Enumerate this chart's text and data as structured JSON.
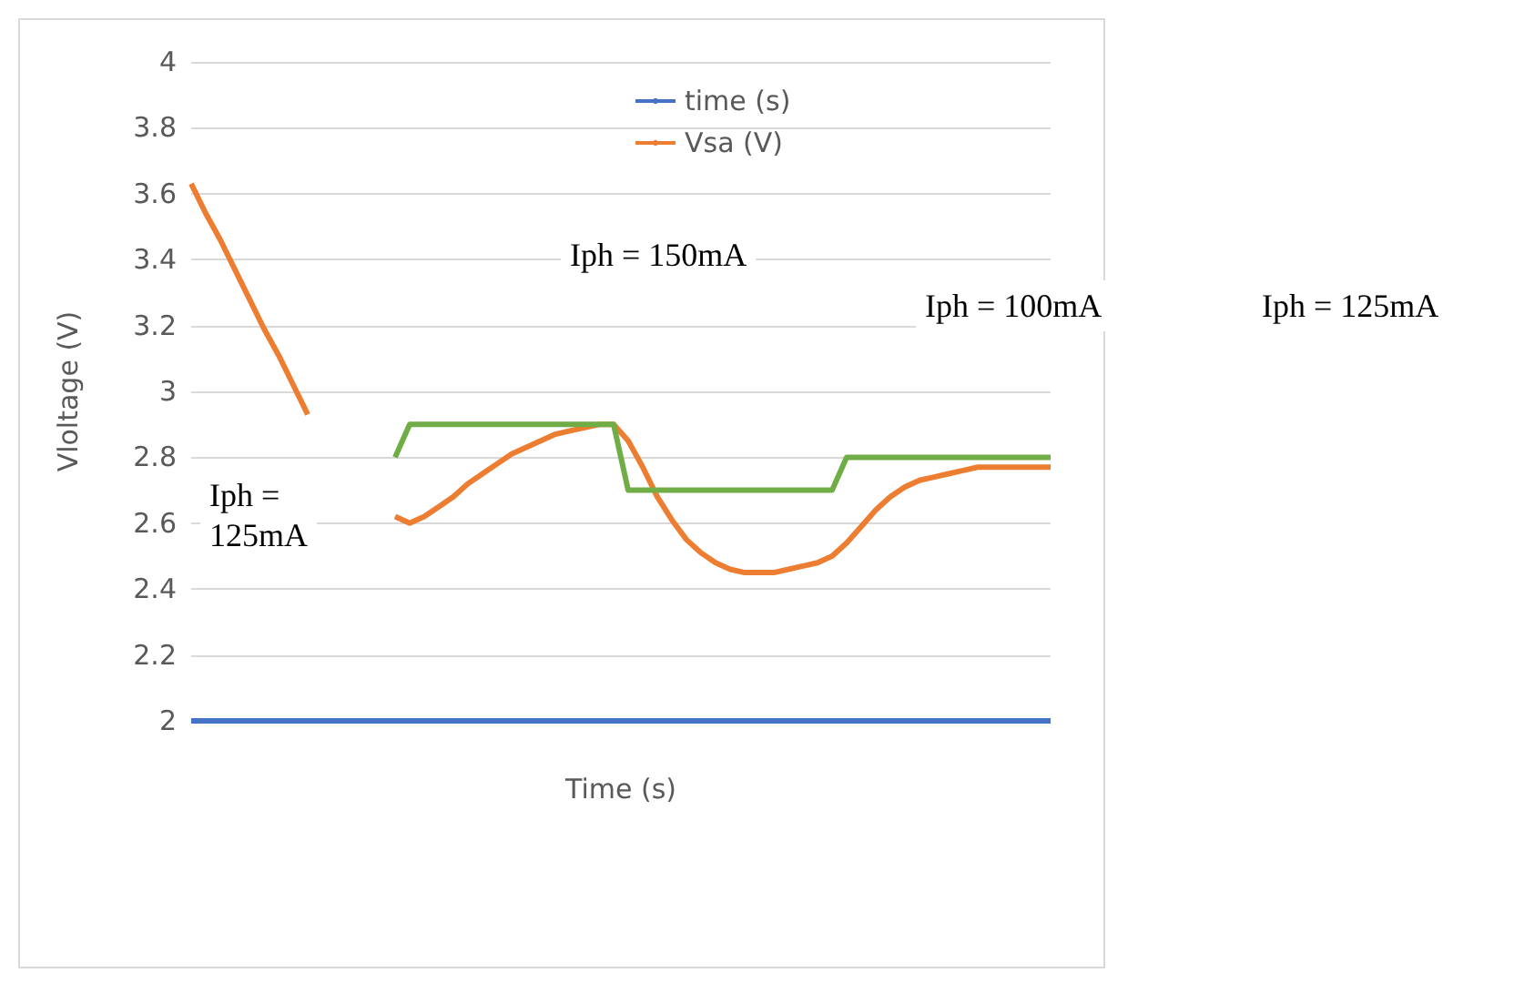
{
  "chart_data": {
    "type": "line",
    "xlabel": "Time (s)",
    "ylabel": "Vloltage (V)",
    "categories": [
      null,
      null,
      null,
      null,
      null,
      null,
      null,
      null,
      null,
      null,
      null,
      null,
      null,
      null,
      null,
      null,
      null,
      null,
      null,
      null,
      null,
      null,
      null,
      null,
      null,
      null,
      null,
      null,
      null,
      null,
      null,
      null,
      null,
      null,
      null,
      null,
      null,
      null,
      null,
      null,
      null,
      null,
      null,
      null,
      null,
      null,
      null,
      null,
      null,
      null,
      null,
      null,
      null,
      null,
      null,
      null,
      null,
      null,
      null,
      null
    ],
    "series": [
      {
        "name": "time (s)",
        "color": "#4472c4",
        "values": [
          2,
          2,
          2,
          2,
          2,
          2,
          2,
          2,
          2,
          2,
          2,
          2,
          2,
          2,
          2,
          2,
          2,
          2,
          2,
          2,
          2,
          2,
          2,
          2,
          2,
          2,
          2,
          2,
          2,
          2,
          2,
          2,
          2,
          2,
          2,
          2,
          2,
          2,
          2,
          2,
          2,
          2,
          2,
          2,
          2,
          2,
          2,
          2,
          2,
          2,
          2,
          2,
          2,
          2,
          2,
          2,
          2,
          2,
          2,
          2
        ]
      },
      {
        "name": "Vsa (V)",
        "color": "#ed7d31",
        "values": [
          3.63,
          3.54,
          3.46,
          3.37,
          3.28,
          3.19,
          3.11,
          3.02,
          2.93,
          null,
          null,
          null,
          null,
          null,
          2.62,
          2.6,
          2.62,
          2.65,
          2.68,
          2.72,
          2.75,
          2.78,
          2.81,
          2.83,
          2.85,
          2.87,
          2.88,
          2.89,
          2.9,
          2.9,
          2.85,
          2.77,
          2.68,
          2.61,
          2.55,
          2.51,
          2.48,
          2.46,
          2.45,
          2.45,
          2.45,
          2.46,
          2.47,
          2.48,
          2.5,
          2.54,
          2.59,
          2.64,
          2.68,
          2.71,
          2.73,
          2.74,
          2.75,
          2.76,
          2.77,
          2.77,
          2.77,
          2.77,
          2.77,
          2.77
        ]
      },
      {
        "color": "#70ad47",
        "values": [
          null,
          null,
          null,
          null,
          null,
          null,
          null,
          null,
          null,
          null,
          null,
          null,
          null,
          null,
          2.8,
          2.9,
          2.9,
          2.9,
          2.9,
          2.9,
          2.9,
          2.9,
          2.9,
          2.9,
          2.9,
          2.9,
          2.9,
          2.9,
          2.9,
          2.9,
          2.7,
          2.7,
          2.7,
          2.7,
          2.7,
          2.7,
          2.7,
          2.7,
          2.7,
          2.7,
          2.7,
          2.7,
          2.7,
          2.7,
          2.7,
          2.8,
          2.8,
          2.8,
          2.8,
          2.8,
          2.8,
          2.8,
          2.8,
          2.8,
          2.8,
          2.8,
          2.8,
          2.8,
          2.8,
          2.8
        ]
      }
    ],
    "ylim": [
      2,
      4
    ],
    "yticks": [
      2,
      2.2,
      2.4,
      2.6,
      2.8,
      3,
      3.2,
      3.4,
      3.6,
      3.8,
      4
    ],
    "grid": "y",
    "legend": "top",
    "line_style": "solid",
    "marker": "none",
    "annotations": [
      "Iph = 150mA",
      "Iph = 100mA",
      "Iph = 125mA",
      "Iph =\n125mA"
    ]
  }
}
